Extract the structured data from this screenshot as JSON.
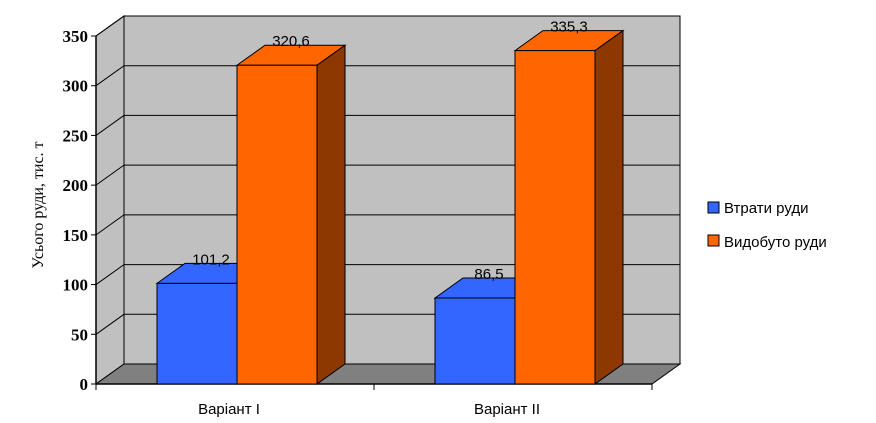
{
  "chart_data": {
    "type": "bar",
    "categories": [
      "Варіант І",
      "Варіант ІІ"
    ],
    "series": [
      {
        "name": "Втрати руди",
        "values": [
          101.2,
          86.5
        ],
        "labels": [
          "101,2",
          "86,5"
        ],
        "color": "#3366ff"
      },
      {
        "name": "Видобуто руди",
        "values": [
          320.6,
          335.3
        ],
        "labels": [
          "320,6",
          "335,3"
        ],
        "color": "#ff6600"
      }
    ],
    "ylabel": "Усього руди, тис. т",
    "xlabel": "",
    "ylim": [
      0,
      350
    ],
    "yticks": [
      "0",
      "50",
      "100",
      "150",
      "200",
      "250",
      "300",
      "350"
    ],
    "grid": true,
    "three_d": true,
    "legend_position": "right",
    "plot_background": "#c0c0c0",
    "floor_color": "#808080"
  }
}
